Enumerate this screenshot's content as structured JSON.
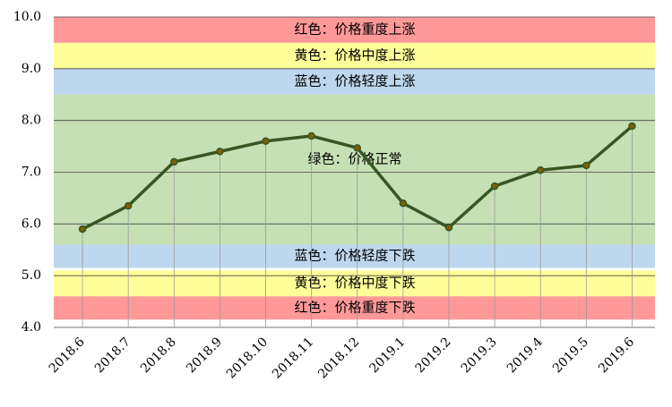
{
  "chart_data": {
    "type": "line",
    "categories": [
      "2018.6",
      "2018.7",
      "2018.8",
      "2018.9",
      "2018.10",
      "2018.11",
      "2018.12",
      "2019.1",
      "2019.2",
      "2019.3",
      "2019.4",
      "2019.5",
      "2019.6"
    ],
    "series": [
      {
        "color": "#375623",
        "marker_color": "#7f6000",
        "values": [
          5.9,
          6.35,
          7.2,
          7.4,
          7.6,
          7.7,
          7.47,
          6.4,
          5.93,
          6.73,
          7.04,
          7.13,
          7.89
        ]
      }
    ],
    "ylim": [
      4.0,
      10.0
    ],
    "yticks": [
      {
        "value": 4.0,
        "label": "4.0"
      },
      {
        "value": 5.0,
        "label": "5.0"
      },
      {
        "value": 6.0,
        "label": "6.0"
      },
      {
        "value": 7.0,
        "label": "7.0"
      },
      {
        "value": 8.0,
        "label": "8.0"
      },
      {
        "value": 9.0,
        "label": "9.0"
      },
      {
        "value": 10.0,
        "label": "10.0"
      }
    ],
    "grid": true,
    "bands": [
      {
        "label": "红色：价格重度上涨",
        "color": "#ff9999",
        "from": 9.5,
        "to": 10.0
      },
      {
        "label": "黄色：价格中度上涨",
        "color": "#ffff99",
        "from": 9.0,
        "to": 9.5
      },
      {
        "label": "蓝色：价格轻度上涨",
        "color": "#bdd7ee",
        "from": 8.5,
        "to": 9.0
      },
      {
        "label": "绿色：价格正常",
        "color": "#c5e0b4",
        "from": 5.6,
        "to": 8.5
      },
      {
        "label": "蓝色：价格轻度下跌",
        "color": "#bdd7ee",
        "from": 5.15,
        "to": 5.6
      },
      {
        "label": "黄色：价格中度下跌",
        "color": "#ffff99",
        "from": 4.6,
        "to": 5.1
      },
      {
        "label": "红色：价格重度下跌",
        "color": "#ff9999",
        "from": 4.15,
        "to": 4.6
      }
    ]
  }
}
